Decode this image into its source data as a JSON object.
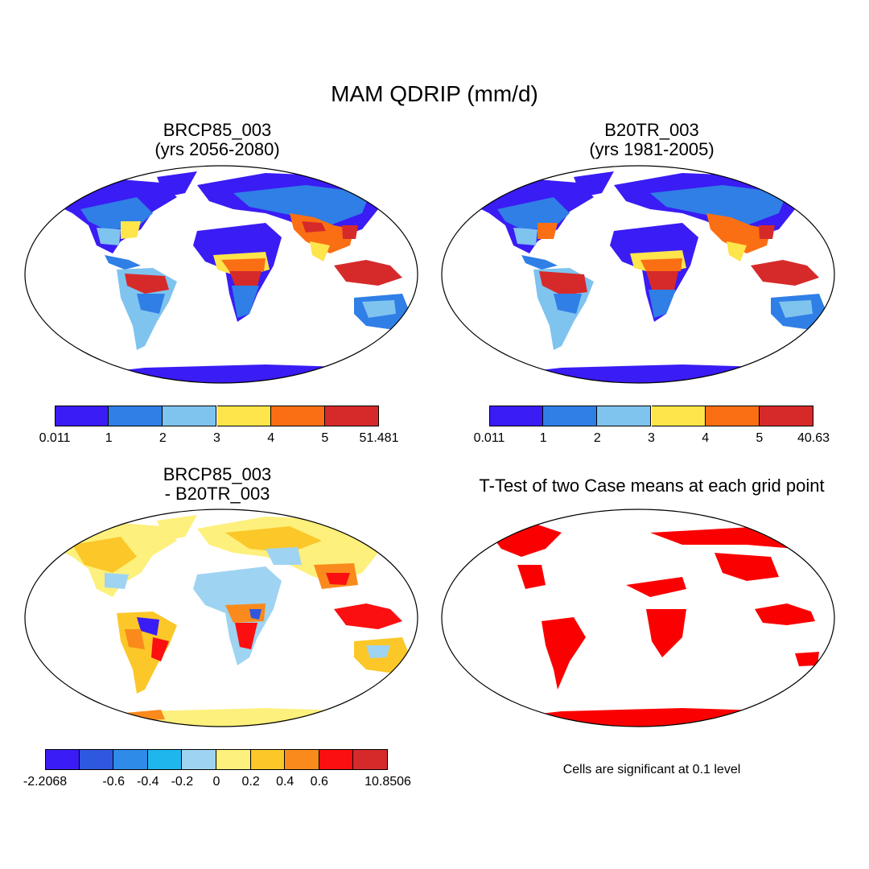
{
  "figure": {
    "title": "MAM QDRIP (mm/d)",
    "note": "Cells are significant at 0.1 level"
  },
  "colors": {
    "c1": "#3a1cf4",
    "c2": "#2f7fe6",
    "c3": "#7fc3ef",
    "c4": "#fde54b",
    "c5": "#fb6f14",
    "c6": "#d62a2a",
    "d1": "#3a1cf4",
    "d2": "#2f58e0",
    "d3": "#2f8be8",
    "d4": "#1fb6ee",
    "d5": "#9fd3f2",
    "d6": "#fdf07c",
    "d7": "#fbc729",
    "d8": "#fb8a1c",
    "d9": "#fb0f10",
    "d10": "#d62a2a",
    "sig": "#fb0000"
  },
  "panels": [
    {
      "id": "p1",
      "title_line1": "BRCP85_003",
      "title_line2": "(yrs 2056-2080)",
      "colorbar": {
        "colors": [
          "#3a1cf4",
          "#2f7fe6",
          "#7fc3ef",
          "#fde54b",
          "#fb6f14",
          "#d62a2a"
        ],
        "labels": [
          "0.011",
          "1",
          "2",
          "3",
          "4",
          "5",
          "51.481"
        ]
      }
    },
    {
      "id": "p2",
      "title_line1": "B20TR_003",
      "title_line2": "(yrs 1981-2005)",
      "colorbar": {
        "colors": [
          "#3a1cf4",
          "#2f7fe6",
          "#7fc3ef",
          "#fde54b",
          "#fb6f14",
          "#d62a2a"
        ],
        "labels": [
          "0.011",
          "1",
          "2",
          "3",
          "4",
          "5",
          "40.63"
        ]
      }
    },
    {
      "id": "p3",
      "title_line1": "BRCP85_003",
      "title_line2": "- B20TR_003",
      "colorbar": {
        "colors": [
          "#3a1cf4",
          "#2f58e0",
          "#2f8be8",
          "#1fb6ee",
          "#9fd3f2",
          "#fdf07c",
          "#fbc729",
          "#fb8a1c",
          "#fb0f10",
          "#d62a2a"
        ],
        "labels": [
          "-2.2068",
          "",
          "-0.6",
          "-0.4",
          "-0.2",
          "0",
          "0.2",
          "0.4",
          "0.6",
          "",
          "10.8506"
        ]
      }
    },
    {
      "id": "p4",
      "title_line1": "T-Test of two Case means at each grid point",
      "title_line2": ""
    }
  ]
}
